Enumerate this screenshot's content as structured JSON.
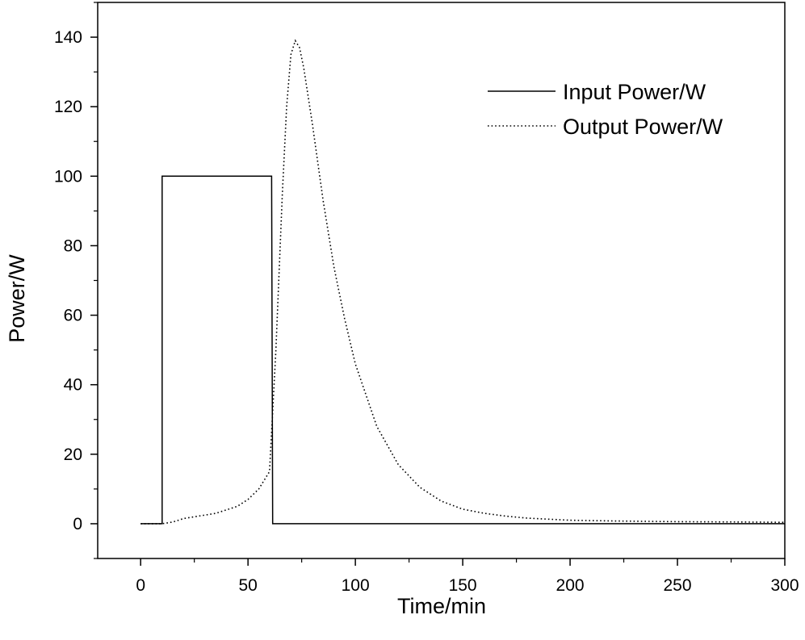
{
  "chart_data": {
    "type": "line",
    "xlabel": "Time/min",
    "ylabel": "Power/W",
    "xlim": [
      -20,
      300
    ],
    "ylim": [
      -10,
      150
    ],
    "xticks": [
      0,
      50,
      100,
      150,
      200,
      250,
      300
    ],
    "yticks": [
      0,
      20,
      40,
      60,
      80,
      100,
      120,
      140
    ],
    "grid": false,
    "legend_position": "top-right",
    "series": [
      {
        "name": "Input Power/W",
        "style": "solid",
        "color": "#000000",
        "x": [
          0,
          10,
          10,
          60,
          61,
          61.5,
          300
        ],
        "y": [
          0,
          0,
          100,
          100,
          100,
          0,
          0
        ]
      },
      {
        "name": "Output Power/W",
        "style": "dotted",
        "color": "#000000",
        "x": [
          0,
          10,
          15,
          20,
          25,
          30,
          35,
          40,
          45,
          50,
          55,
          60,
          63,
          66,
          68,
          70,
          72,
          74,
          76,
          80,
          85,
          90,
          95,
          100,
          110,
          120,
          130,
          140,
          150,
          160,
          170,
          180,
          190,
          200,
          220,
          250,
          280,
          300
        ],
        "y": [
          0,
          0,
          0.5,
          1.5,
          2,
          2.5,
          3,
          4,
          5,
          7,
          10,
          15,
          50,
          95,
          120,
          135,
          139,
          137,
          131,
          115,
          93,
          74,
          59,
          46,
          28,
          17,
          10.5,
          6.5,
          4.2,
          3,
          2.2,
          1.6,
          1.3,
          1,
          0.8,
          0.6,
          0.5,
          0.4
        ]
      }
    ]
  }
}
